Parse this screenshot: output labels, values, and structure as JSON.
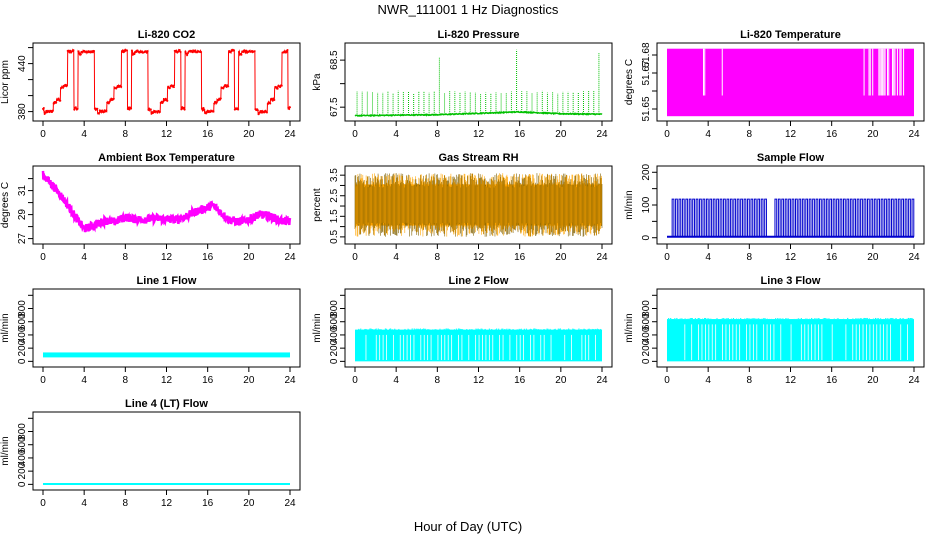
{
  "figure": {
    "title": "NWR_111001  1 Hz Diagnostics",
    "xlabel": "Hour of Day (UTC)"
  },
  "chart_data": [
    {
      "type": "line",
      "title": "Li-820 CO2",
      "ylabel": "Licor ppm",
      "color": "#ff0000",
      "xlim": [
        0,
        24
      ],
      "xticks": [
        0,
        4,
        8,
        12,
        16,
        20,
        24
      ],
      "ylim": [
        372,
        462
      ],
      "yticks": [
        380,
        400,
        420,
        440,
        460
      ],
      "ytick_labels": [
        "380",
        "",
        "",
        "440",
        ""
      ],
      "pattern": "co2",
      "x": [
        0,
        0.1,
        0.3,
        0.7,
        1.0,
        1.3,
        1.7,
        2.0,
        2.3,
        2.4,
        2.7,
        2.8,
        3.0,
        3.3,
        3.4,
        3.5,
        3.7,
        4.0,
        4.3,
        4.5,
        5.0,
        5.2
      ],
      "y": [
        383,
        378,
        380,
        380,
        391,
        395,
        410,
        412,
        412,
        455,
        455,
        456,
        384,
        383,
        455,
        452,
        455,
        455,
        455,
        455,
        383,
        380
      ]
    },
    {
      "type": "line",
      "title": "Li-820 Pressure",
      "ylabel": "kPa",
      "color": "#00c000",
      "xlim": [
        0,
        24
      ],
      "xticks": [
        0,
        4,
        8,
        12,
        16,
        20,
        24
      ],
      "ylim": [
        67.27,
        68.8
      ],
      "yticks": [
        67.5,
        68.0,
        68.5
      ],
      "ytick_labels": [
        "67.5",
        "",
        "68.5"
      ],
      "pattern": "pressure",
      "x": [
        0,
        4,
        8,
        12,
        16,
        20,
        24
      ],
      "y": [
        67.32,
        67.33,
        67.34,
        67.37,
        67.4,
        67.36,
        67.35
      ]
    },
    {
      "type": "line",
      "title": "Li-820 Temperature",
      "ylabel": "degrees C",
      "color": "#ff00ff",
      "xlim": [
        0,
        24
      ],
      "xticks": [
        0,
        4,
        8,
        12,
        16,
        20,
        24
      ],
      "ylim": [
        51.645,
        51.685
      ],
      "yticks": [
        51.65,
        51.66,
        51.67,
        51.68
      ],
      "ytick_labels": [
        "51.65",
        "",
        "51.67",
        "51.68"
      ],
      "pattern": "temperature",
      "x": [
        0,
        24
      ],
      "y": [
        51.6575,
        51.6575
      ]
    },
    {
      "type": "line",
      "title": "Ambient Box Temperature",
      "ylabel": "degrees C",
      "color": "#ff00ff",
      "xlim": [
        0,
        24
      ],
      "xticks": [
        0,
        4,
        8,
        12,
        16,
        20,
        24
      ],
      "ylim": [
        26.8,
        32.8
      ],
      "yticks": [
        27,
        28,
        29,
        30,
        31,
        32
      ],
      "ytick_labels": [
        "27",
        "",
        "29",
        "",
        "31",
        ""
      ],
      "pattern": "ambient",
      "x": [
        0,
        1,
        2,
        3,
        4,
        5,
        6,
        7,
        8,
        9,
        10,
        11,
        12,
        13,
        14,
        15,
        16,
        16.5,
        17,
        18,
        19,
        20,
        21,
        22,
        23,
        24
      ],
      "y": [
        32.3,
        31.4,
        30.3,
        29.0,
        27.8,
        28.1,
        28.5,
        28.4,
        28.8,
        28.6,
        28.6,
        28.7,
        28.6,
        28.6,
        28.9,
        29.3,
        29.6,
        29.8,
        29.4,
        28.6,
        28.4,
        28.6,
        29.0,
        28.9,
        28.5,
        28.4
      ]
    },
    {
      "type": "line",
      "title": "Gas Stream RH",
      "ylabel": "percent",
      "color": "#ffa500",
      "color2": "#806000",
      "xlim": [
        0,
        24
      ],
      "xticks": [
        0,
        4,
        8,
        12,
        16,
        20,
        24
      ],
      "ylim": [
        0.3,
        3.8
      ],
      "yticks": [
        0.5,
        1.0,
        1.5,
        2.0,
        2.5,
        3.0,
        3.5
      ],
      "ytick_labels": [
        "0.5",
        "",
        "1.5",
        "",
        "2.5",
        "",
        "3.5"
      ],
      "pattern": "rh",
      "x": [
        0,
        24
      ],
      "y": [
        2.0,
        2.0
      ]
    },
    {
      "type": "line",
      "title": "Sample Flow",
      "ylabel": "ml/min",
      "color": "#0000cd",
      "xlim": [
        0,
        24
      ],
      "xticks": [
        0,
        4,
        8,
        12,
        16,
        20,
        24
      ],
      "ylim": [
        -10,
        210
      ],
      "yticks": [
        0,
        50,
        100,
        150,
        200
      ],
      "ytick_labels": [
        "0",
        "",
        "100",
        "",
        "200"
      ],
      "pattern": "sample",
      "x": [
        0,
        24
      ],
      "y": [
        3,
        3
      ],
      "peak": 118
    },
    {
      "type": "line",
      "title": "Line 1 Flow",
      "ylabel": "ml/min",
      "color": "#00ffff",
      "xlim": [
        0,
        24
      ],
      "xticks": [
        0,
        4,
        8,
        12,
        16,
        20,
        24
      ],
      "ylim": [
        -40,
        1050
      ],
      "yticks": [
        0,
        200,
        400,
        600,
        800,
        1000
      ],
      "ytick_labels": [
        "0",
        "200",
        "400",
        "600",
        "800",
        ""
      ],
      "pattern": "line1",
      "x": [
        0,
        24
      ],
      "y": [
        100,
        100
      ]
    },
    {
      "type": "line",
      "title": "Line 2 Flow",
      "ylabel": "ml/min",
      "color": "#00ffff",
      "xlim": [
        0,
        24
      ],
      "xticks": [
        0,
        4,
        8,
        12,
        16,
        20,
        24
      ],
      "ylim": [
        -40,
        1050
      ],
      "yticks": [
        0,
        200,
        400,
        600,
        800,
        1000
      ],
      "ytick_labels": [
        "0",
        "200",
        "400",
        "600",
        "800",
        ""
      ],
      "pattern": "line2",
      "x": [
        0,
        24
      ],
      "y": [
        445,
        445
      ]
    },
    {
      "type": "line",
      "title": "Line 3 Flow",
      "ylabel": "ml/min",
      "color": "#00ffff",
      "xlim": [
        0,
        24
      ],
      "xticks": [
        0,
        4,
        8,
        12,
        16,
        20,
        24
      ],
      "ylim": [
        -40,
        1050
      ],
      "yticks": [
        0,
        200,
        400,
        600,
        800,
        1000
      ],
      "ytick_labels": [
        "0",
        "200",
        "400",
        "600",
        "800",
        ""
      ],
      "pattern": "line3",
      "x": [
        0,
        24
      ],
      "y": [
        610,
        610
      ]
    },
    {
      "type": "line",
      "title": "Line 4 (LT) Flow",
      "ylabel": "ml/min",
      "color": "#00ffff",
      "xlim": [
        0,
        24
      ],
      "xticks": [
        0,
        4,
        8,
        12,
        16,
        20,
        24
      ],
      "ylim": [
        -40,
        1050
      ],
      "yticks": [
        0,
        200,
        400,
        600,
        800,
        1000
      ],
      "ytick_labels": [
        "0",
        "200",
        "400",
        "600",
        "800",
        ""
      ],
      "pattern": "flat",
      "x": [
        0,
        24
      ],
      "y": [
        5,
        5
      ]
    }
  ]
}
